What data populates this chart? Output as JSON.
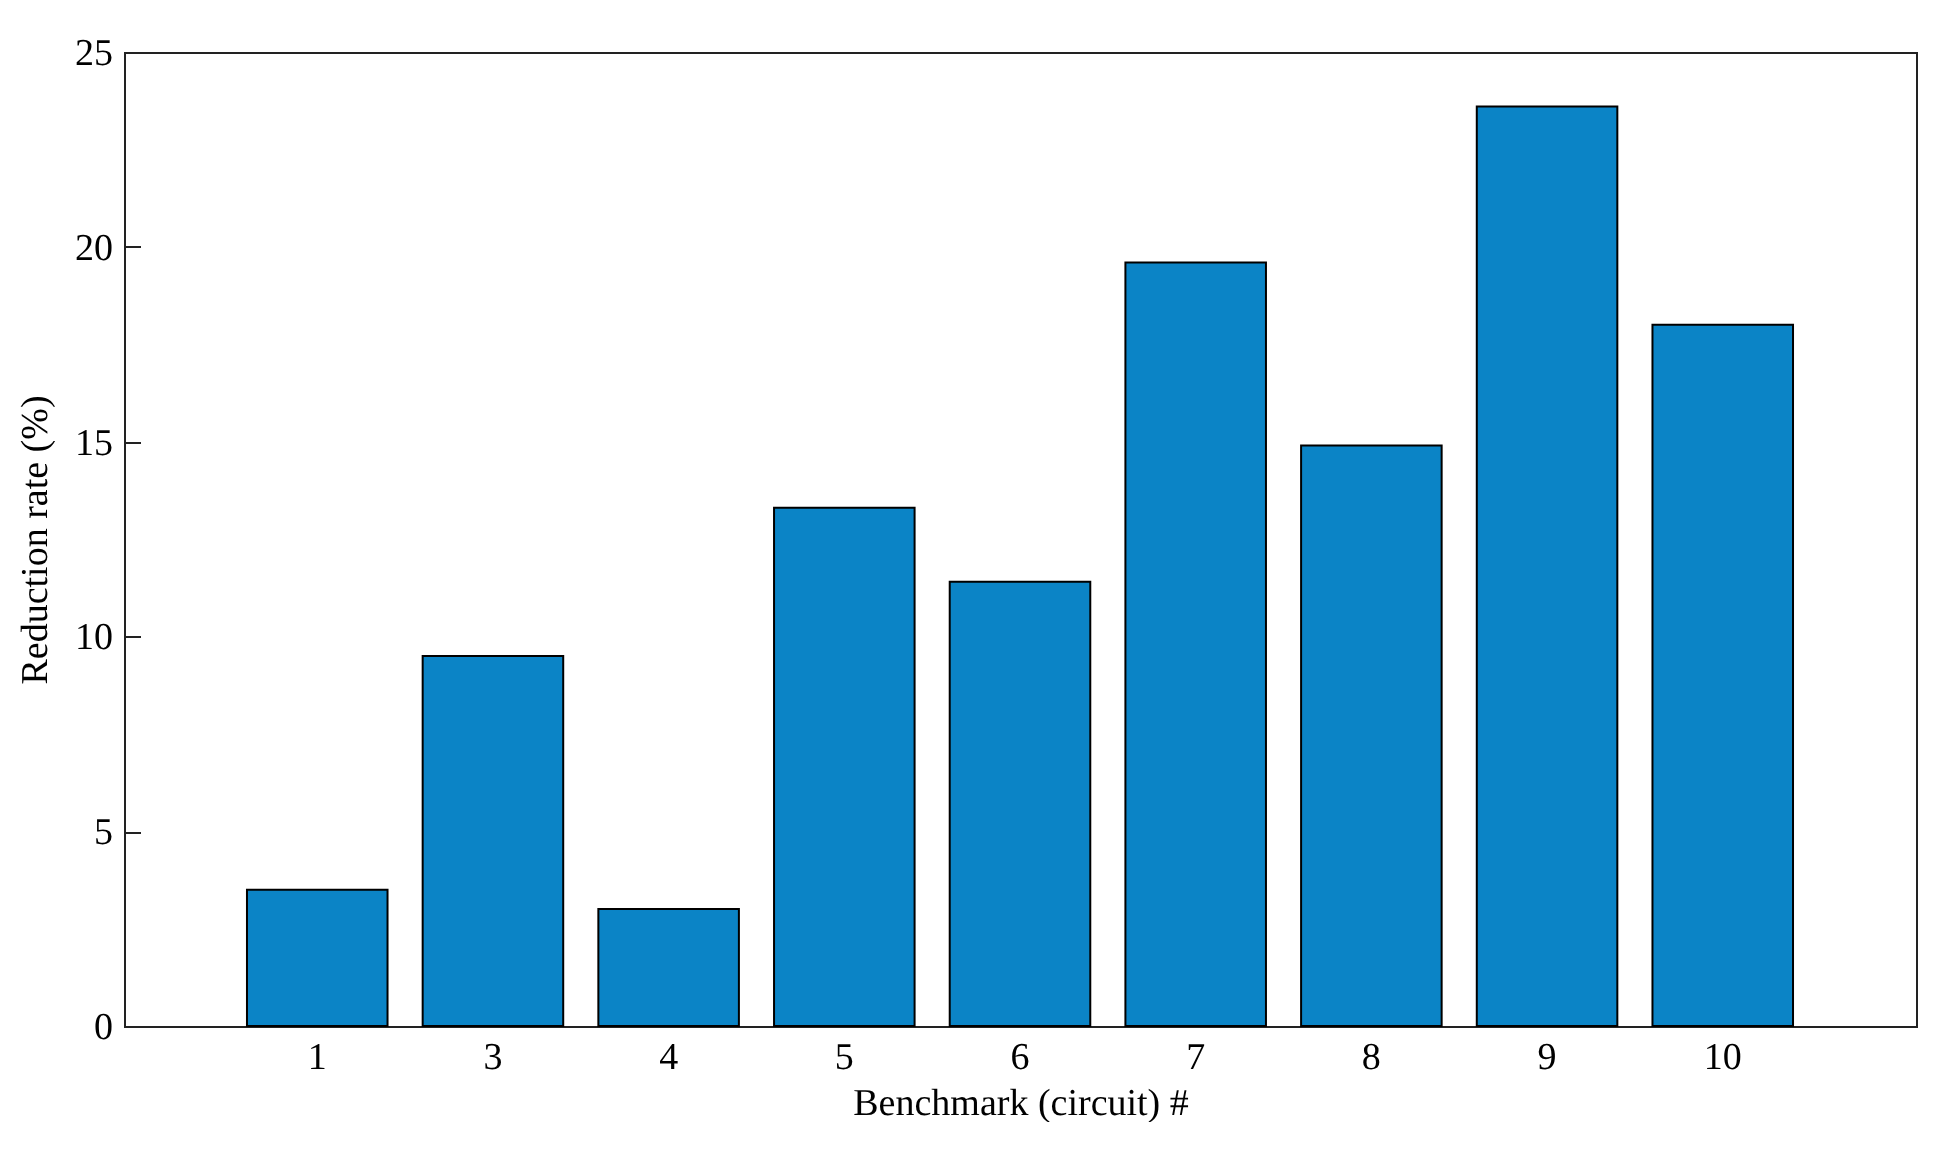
{
  "chart_data": {
    "type": "bar",
    "xlabel": "Benchmark (circuit) #",
    "ylabel": "Reduction rate (%)",
    "categories": [
      "1",
      "3",
      "4",
      "5",
      "6",
      "7",
      "8",
      "9",
      "10"
    ],
    "values": [
      3.5,
      9.5,
      3.0,
      13.3,
      11.4,
      19.6,
      14.9,
      23.6,
      18.0
    ],
    "color": "#0b84c6",
    "ylim": [
      0,
      25
    ],
    "yticks": [
      0,
      5,
      10,
      15,
      20,
      25
    ],
    "grid": false
  }
}
